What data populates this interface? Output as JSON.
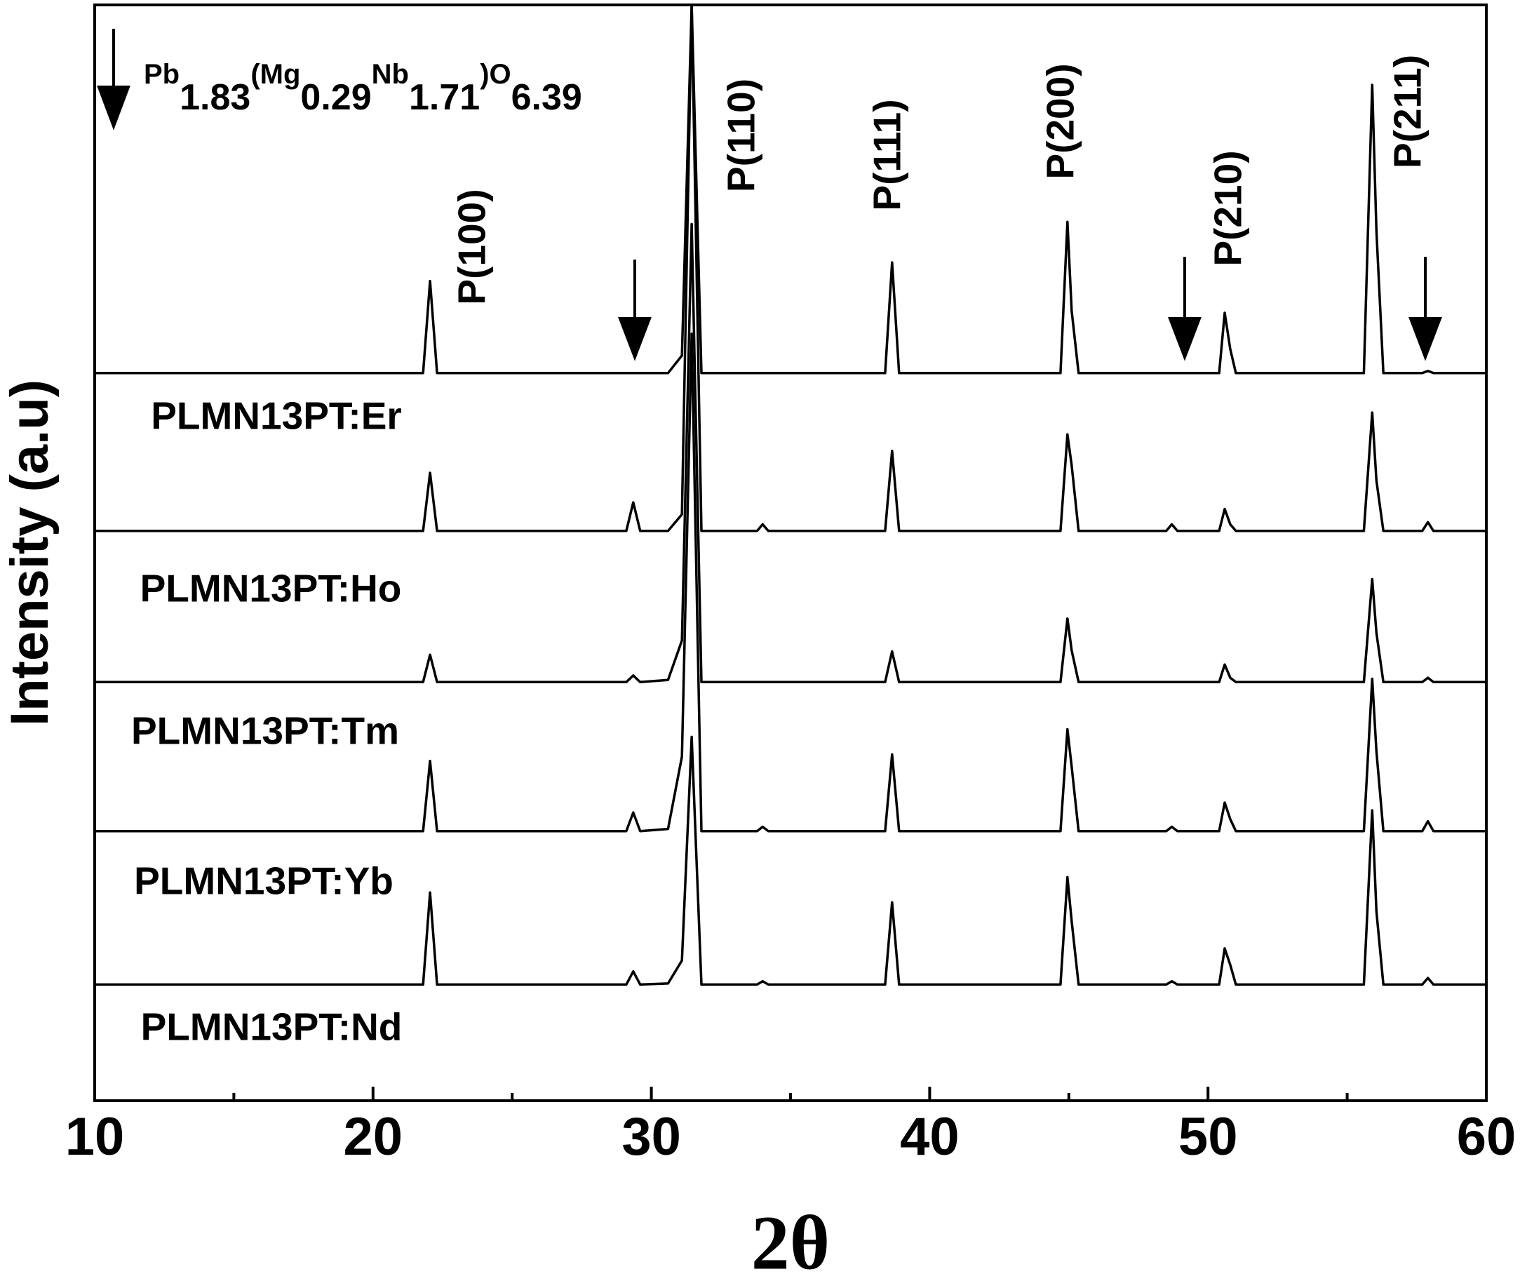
{
  "chart_data": {
    "type": "line",
    "x_label": "2θ",
    "y_label": "Intensity (a.u)",
    "xlim": [
      10,
      60
    ],
    "xticks": [
      10,
      20,
      30,
      40,
      50,
      60
    ],
    "xminor_ticks": [
      15,
      25,
      35,
      45,
      55
    ],
    "ylim": [
      0,
      100
    ],
    "line_color": "#000000",
    "formula_parts": [
      "Pb",
      "1.83",
      "(Mg",
      "0.29",
      "Nb",
      "1.71",
      ")O",
      "6.39"
    ],
    "peak_labels": [
      "P(100)",
      "P(110)",
      "P(111)",
      "P(200)",
      "P(210)",
      "P(211)"
    ],
    "x": [
      10,
      21.8,
      22.05,
      22.3,
      29.1,
      29.35,
      29.6,
      30.6,
      31.1,
      31.45,
      31.8,
      33.8,
      34.0,
      34.2,
      38.4,
      38.65,
      38.9,
      44.7,
      44.95,
      45.1,
      45.35,
      48.5,
      48.7,
      48.9,
      50.4,
      50.6,
      50.8,
      51.0,
      55.6,
      55.9,
      56.05,
      56.3,
      57.7,
      57.9,
      58.1,
      60
    ],
    "series": [
      {
        "name": "PLMN13PT:Er",
        "values": [
          66.4,
          66.4,
          74.8,
          66.4,
          66.4,
          66.4,
          66.4,
          66.4,
          68,
          100,
          66.4,
          66.4,
          66.4,
          66.4,
          66.4,
          76.5,
          66.4,
          66.4,
          80.2,
          72.1,
          66.4,
          66.4,
          66.4,
          66.4,
          66.4,
          71.9,
          68.6,
          66.4,
          66.4,
          92.7,
          79.4,
          66.4,
          66.4,
          66.6,
          66.4,
          66.4
        ]
      },
      {
        "name": "PLMN13PT:Ho",
        "values": [
          52,
          52,
          57.3,
          52,
          52,
          54.6,
          52,
          52,
          53.5,
          100,
          52,
          52,
          52.6,
          52,
          52,
          59.3,
          52,
          52,
          60.8,
          58,
          52,
          52,
          52.6,
          52,
          52,
          54,
          52.6,
          52,
          52,
          62.8,
          56.6,
          52,
          52,
          52.8,
          52,
          52
        ]
      },
      {
        "name": "PLMN13PT:Tm",
        "values": [
          38.2,
          38.2,
          40.7,
          38.2,
          38.2,
          38.8,
          38.2,
          38.4,
          42,
          80,
          38.2,
          38.2,
          38.2,
          38.2,
          38.2,
          41,
          38.2,
          38.2,
          44,
          41.1,
          38.2,
          38.2,
          38.2,
          38.2,
          38.2,
          39.8,
          38.6,
          38.2,
          38.2,
          47.6,
          42.7,
          38.2,
          38.2,
          38.6,
          38.2,
          38.2
        ]
      },
      {
        "name": "PLMN13PT:Yb",
        "values": [
          24.6,
          24.6,
          31,
          24.6,
          24.6,
          26.3,
          24.6,
          24.8,
          31.4,
          70,
          24.6,
          24.6,
          25,
          24.6,
          24.6,
          31.6,
          24.6,
          24.6,
          33.9,
          30.5,
          24.6,
          24.6,
          25,
          24.6,
          24.6,
          27.2,
          25.7,
          24.6,
          24.6,
          38.5,
          31.9,
          24.6,
          24.6,
          25.5,
          24.6,
          24.6
        ]
      },
      {
        "name": "PLMN13PT:Nd",
        "values": [
          10.6,
          10.6,
          19,
          10.6,
          10.6,
          11.8,
          10.6,
          10.7,
          12.8,
          33.2,
          10.6,
          10.6,
          10.9,
          10.6,
          10.6,
          18.1,
          10.6,
          10.6,
          20.4,
          16.4,
          10.6,
          10.6,
          10.9,
          10.6,
          10.6,
          13.9,
          12.4,
          10.6,
          10.6,
          26.5,
          17.3,
          10.6,
          10.6,
          11.2,
          10.6,
          10.6
        ]
      }
    ]
  }
}
